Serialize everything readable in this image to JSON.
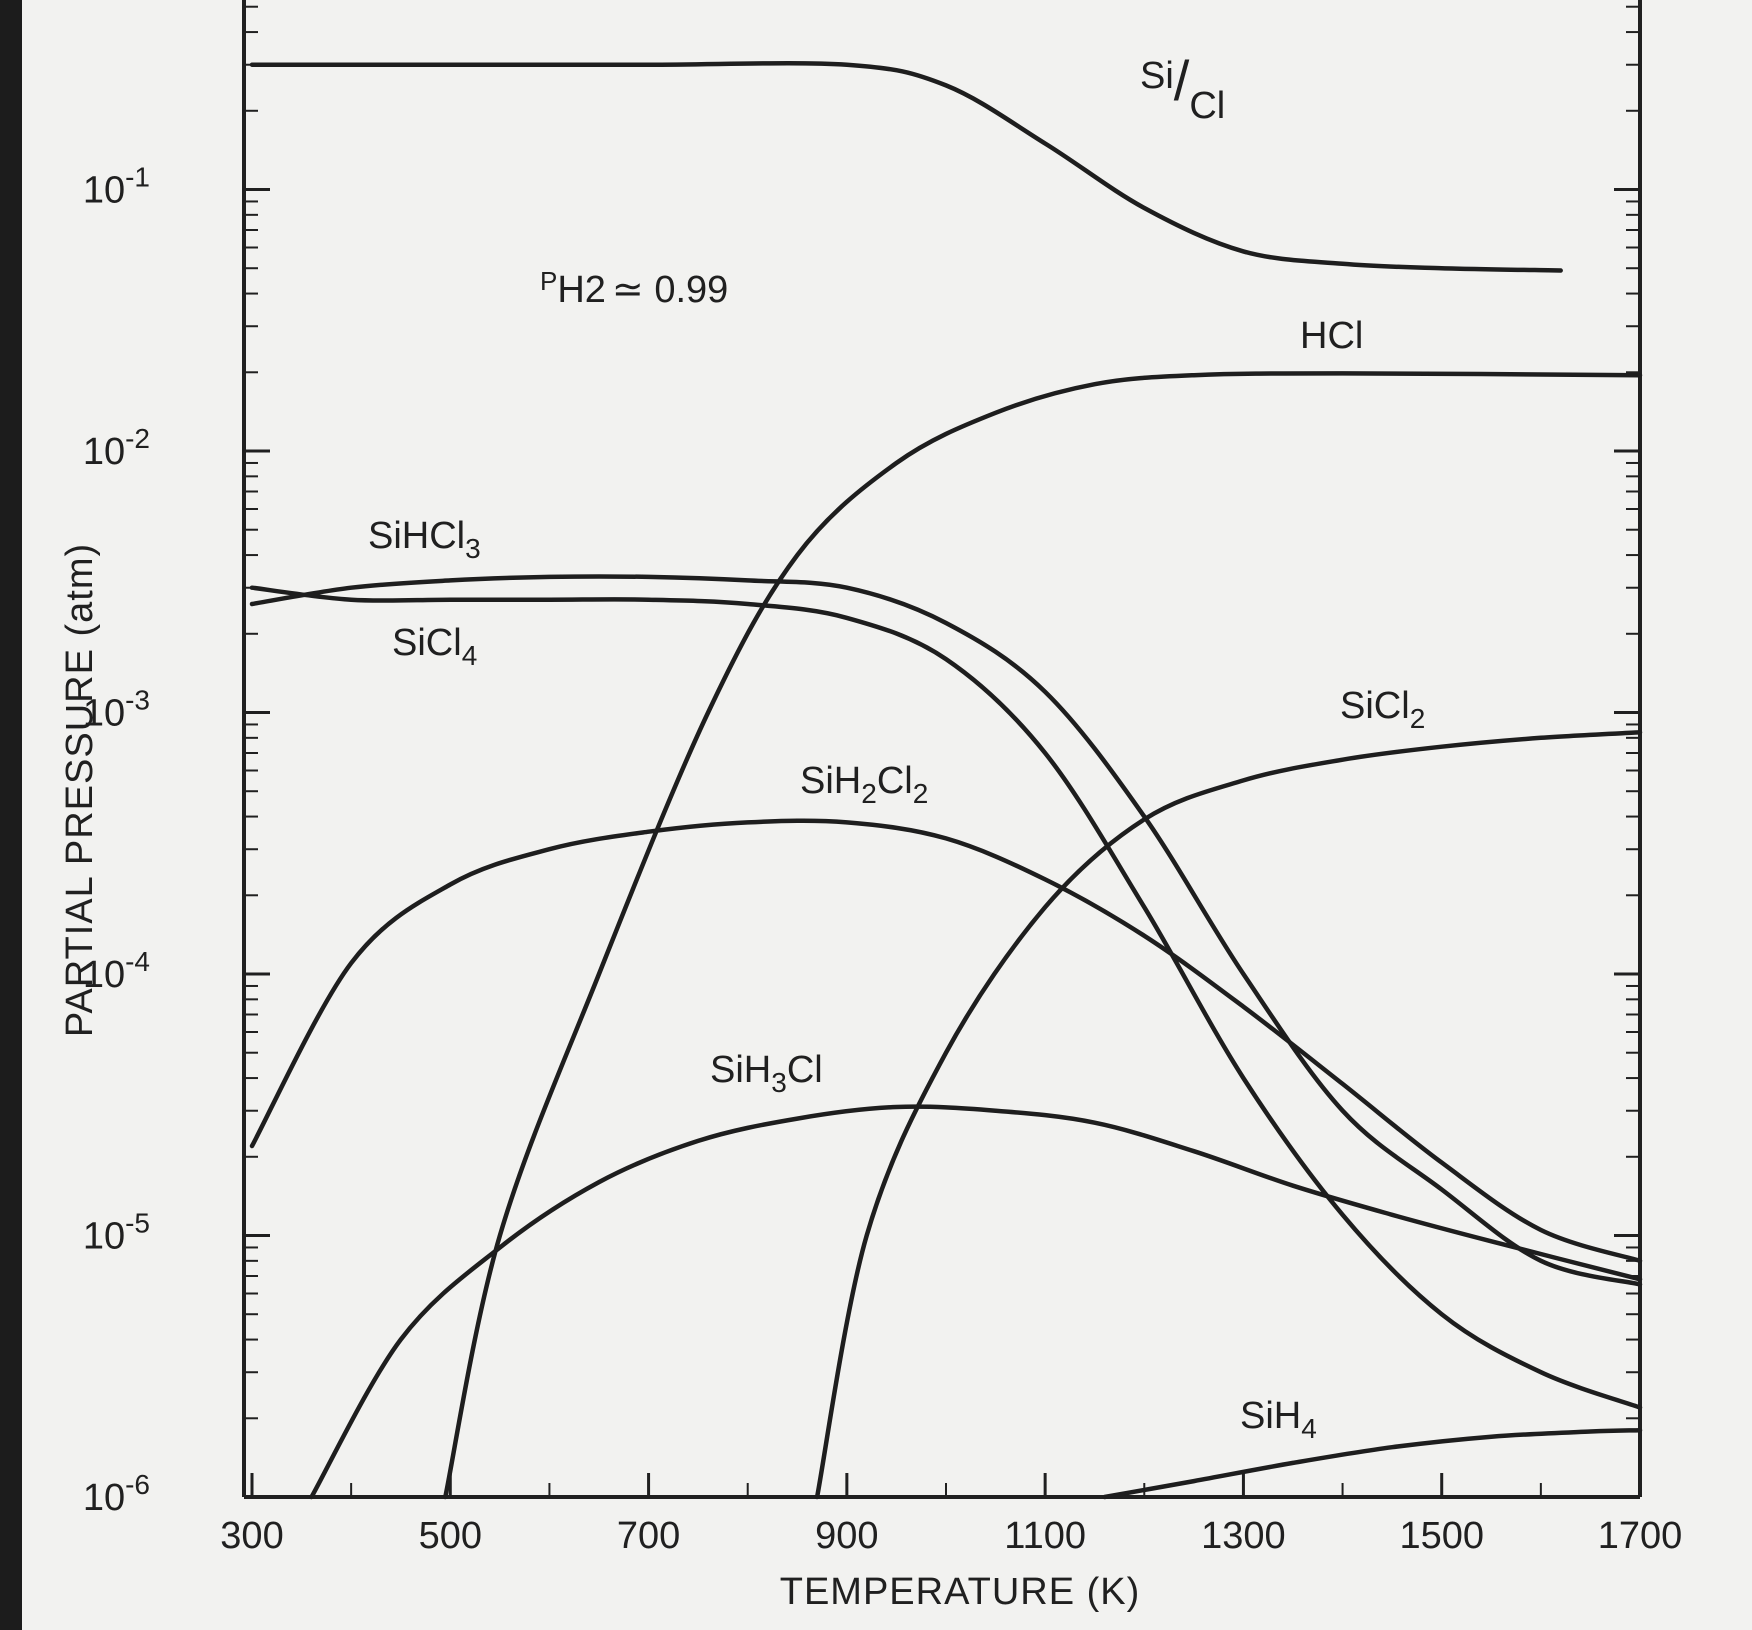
{
  "chart_data": {
    "type": "line",
    "xlabel": "TEMPERATURE (K)",
    "ylabel": "PARTIAL PRESSURE (atm)",
    "xlim": [
      300,
      1700
    ],
    "ylim": [
      1e-06,
      0.5
    ],
    "yscale": "log",
    "x_ticks": [
      300,
      500,
      700,
      900,
      1100,
      1300,
      1500,
      1700
    ],
    "x_tick_labels": [
      "300",
      "500",
      "700",
      "900",
      "1100",
      "1300",
      "1500",
      "1700"
    ],
    "y_ticks": [
      1e-06,
      1e-05,
      0.0001,
      0.001,
      0.01,
      0.1
    ],
    "y_tick_labels": [
      {
        "base": "10",
        "exp": "-6"
      },
      {
        "base": "10",
        "exp": "-5"
      },
      {
        "base": "10",
        "exp": "-4"
      },
      {
        "base": "10",
        "exp": "-3"
      },
      {
        "base": "10",
        "exp": "-2"
      },
      {
        "base": "10",
        "exp": "-1"
      }
    ],
    "annotation": {
      "main": "P",
      "sub": "H2",
      "rest": "≃ 0.99"
    },
    "grid": false,
    "series": [
      {
        "name": "Si/Cl",
        "label_parts": [
          {
            "t": "Si"
          },
          {
            "t": "/",
            "big": true
          },
          {
            "t": "Cl"
          }
        ],
        "points": [
          [
            300,
            0.3
          ],
          [
            500,
            0.3
          ],
          [
            700,
            0.3
          ],
          [
            900,
            0.3
          ],
          [
            1000,
            0.25
          ],
          [
            1100,
            0.15
          ],
          [
            1200,
            0.085
          ],
          [
            1300,
            0.058
          ],
          [
            1400,
            0.052
          ],
          [
            1500,
            0.05
          ],
          [
            1620,
            0.049
          ]
        ]
      },
      {
        "name": "HCl",
        "label_parts": [
          {
            "t": "HCl"
          }
        ],
        "points": [
          [
            495,
            1e-06
          ],
          [
            550,
            1e-05
          ],
          [
            650,
            0.0001
          ],
          [
            760,
            0.001
          ],
          [
            850,
            0.004
          ],
          [
            950,
            0.009
          ],
          [
            1050,
            0.014
          ],
          [
            1150,
            0.018
          ],
          [
            1250,
            0.0195
          ],
          [
            1400,
            0.0198
          ],
          [
            1700,
            0.0195
          ]
        ]
      },
      {
        "name": "SiHCl3",
        "label_parts": [
          {
            "t": "SiHCl"
          },
          {
            "t": "3",
            "sub": true
          }
        ],
        "points": [
          [
            300,
            0.0026
          ],
          [
            400,
            0.003
          ],
          [
            500,
            0.0032
          ],
          [
            600,
            0.0033
          ],
          [
            700,
            0.0033
          ],
          [
            800,
            0.0032
          ],
          [
            900,
            0.003
          ],
          [
            1000,
            0.0022
          ],
          [
            1100,
            0.0012
          ],
          [
            1200,
            0.0004
          ],
          [
            1300,
            0.0001
          ],
          [
            1400,
            3e-05
          ],
          [
            1500,
            1.5e-05
          ],
          [
            1600,
            8e-06
          ],
          [
            1700,
            6.5e-06
          ]
        ]
      },
      {
        "name": "SiCl4",
        "label_parts": [
          {
            "t": "SiCl"
          },
          {
            "t": "4",
            "sub": true
          }
        ],
        "points": [
          [
            300,
            0.003
          ],
          [
            400,
            0.0027
          ],
          [
            500,
            0.0027
          ],
          [
            600,
            0.0027
          ],
          [
            700,
            0.0027
          ],
          [
            800,
            0.0026
          ],
          [
            900,
            0.0023
          ],
          [
            1000,
            0.0016
          ],
          [
            1100,
            0.0007
          ],
          [
            1200,
            0.00018
          ],
          [
            1300,
            4e-05
          ],
          [
            1400,
            1.2e-05
          ],
          [
            1500,
            5e-06
          ],
          [
            1600,
            3e-06
          ],
          [
            1700,
            2.2e-06
          ]
        ]
      },
      {
        "name": "SiH2Cl2",
        "label_parts": [
          {
            "t": "SiH"
          },
          {
            "t": "2",
            "sub": true
          },
          {
            "t": "Cl"
          },
          {
            "t": "2",
            "sub": true
          }
        ],
        "points": [
          [
            300,
            2.2e-05
          ],
          [
            400,
            0.00011
          ],
          [
            500,
            0.00022
          ],
          [
            600,
            0.0003
          ],
          [
            700,
            0.00035
          ],
          [
            800,
            0.00038
          ],
          [
            900,
            0.00038
          ],
          [
            1000,
            0.00033
          ],
          [
            1100,
            0.00023
          ],
          [
            1200,
            0.00014
          ],
          [
            1300,
            7.5e-05
          ],
          [
            1400,
            3.8e-05
          ],
          [
            1500,
            1.9e-05
          ],
          [
            1600,
            1.05e-05
          ],
          [
            1700,
            8e-06
          ]
        ]
      },
      {
        "name": "SiH3Cl",
        "label_parts": [
          {
            "t": "SiH"
          },
          {
            "t": "3",
            "sub": true
          },
          {
            "t": "Cl"
          }
        ],
        "points": [
          [
            360,
            1e-06
          ],
          [
            450,
            4e-06
          ],
          [
            550,
            9e-06
          ],
          [
            650,
            1.6e-05
          ],
          [
            750,
            2.3e-05
          ],
          [
            850,
            2.8e-05
          ],
          [
            950,
            3.1e-05
          ],
          [
            1050,
            3e-05
          ],
          [
            1150,
            2.7e-05
          ],
          [
            1250,
            2.1e-05
          ],
          [
            1350,
            1.55e-05
          ],
          [
            1450,
            1.2e-05
          ],
          [
            1550,
            9.5e-06
          ],
          [
            1700,
            6.8e-06
          ]
        ]
      },
      {
        "name": "SiCl2",
        "label_parts": [
          {
            "t": "SiCl"
          },
          {
            "t": "2",
            "sub": true
          }
        ],
        "points": [
          [
            870,
            1e-06
          ],
          [
            920,
            1e-05
          ],
          [
            1000,
            5e-05
          ],
          [
            1100,
            0.00018
          ],
          [
            1200,
            0.00039
          ],
          [
            1300,
            0.00055
          ],
          [
            1400,
            0.00066
          ],
          [
            1500,
            0.00074
          ],
          [
            1600,
            0.0008
          ],
          [
            1700,
            0.00084
          ]
        ]
      },
      {
        "name": "SiH4",
        "label_parts": [
          {
            "t": "SiH"
          },
          {
            "t": "4",
            "sub": true
          }
        ],
        "points": [
          [
            1160,
            1e-06
          ],
          [
            1250,
            1.15e-06
          ],
          [
            1350,
            1.35e-06
          ],
          [
            1450,
            1.55e-06
          ],
          [
            1550,
            1.7e-06
          ],
          [
            1650,
            1.78e-06
          ],
          [
            1700,
            1.8e-06
          ]
        ]
      }
    ]
  }
}
